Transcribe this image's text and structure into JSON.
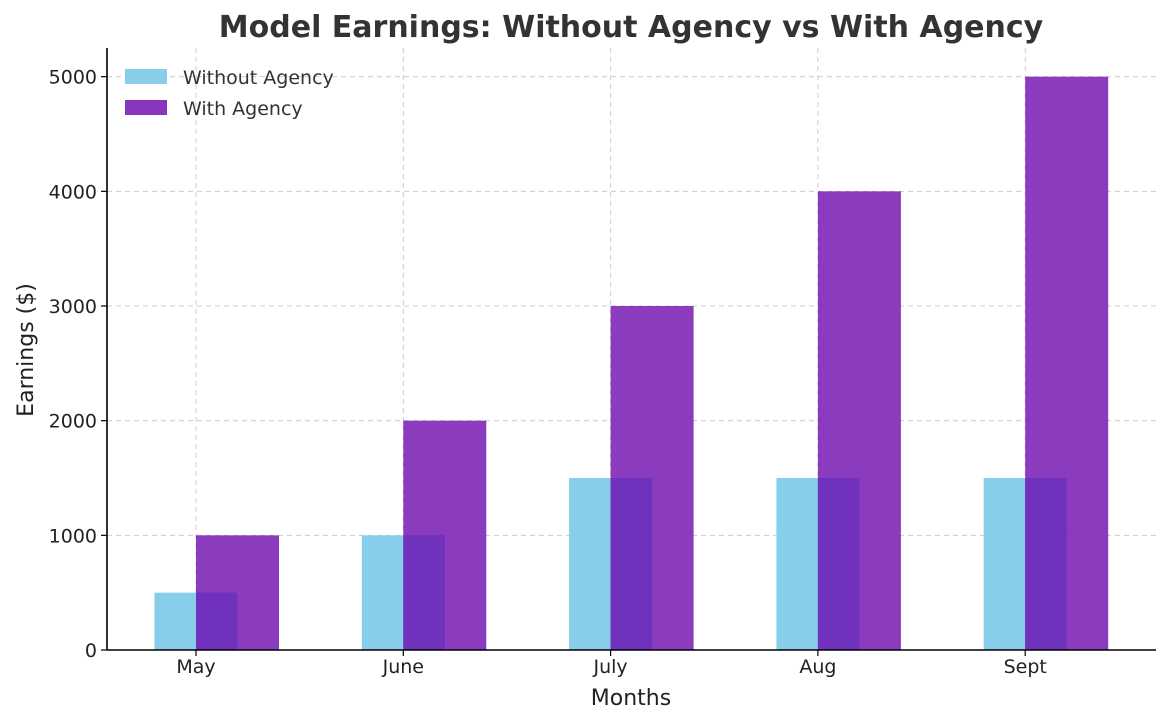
{
  "chart_data": {
    "type": "bar",
    "title": "Model Earnings: Without Agency vs With Agency",
    "xlabel": "Months",
    "ylabel": "Earnings ($)",
    "categories": [
      "May",
      "June",
      "July",
      "Aug",
      "Sept"
    ],
    "series": [
      {
        "name": "Without Agency",
        "values": [
          500,
          1000,
          1500,
          1500,
          1500
        ],
        "color": "#87CEEB"
      },
      {
        "name": "With Agency",
        "values": [
          1000,
          2000,
          3000,
          4000,
          5000
        ],
        "color": "#7B20B5"
      }
    ],
    "ylim": [
      0,
      5250
    ],
    "yticks": [
      0,
      1000,
      2000,
      3000,
      4000,
      5000
    ],
    "grid": true,
    "legend_position": "top-left",
    "overlap_color": "#7032BC"
  }
}
